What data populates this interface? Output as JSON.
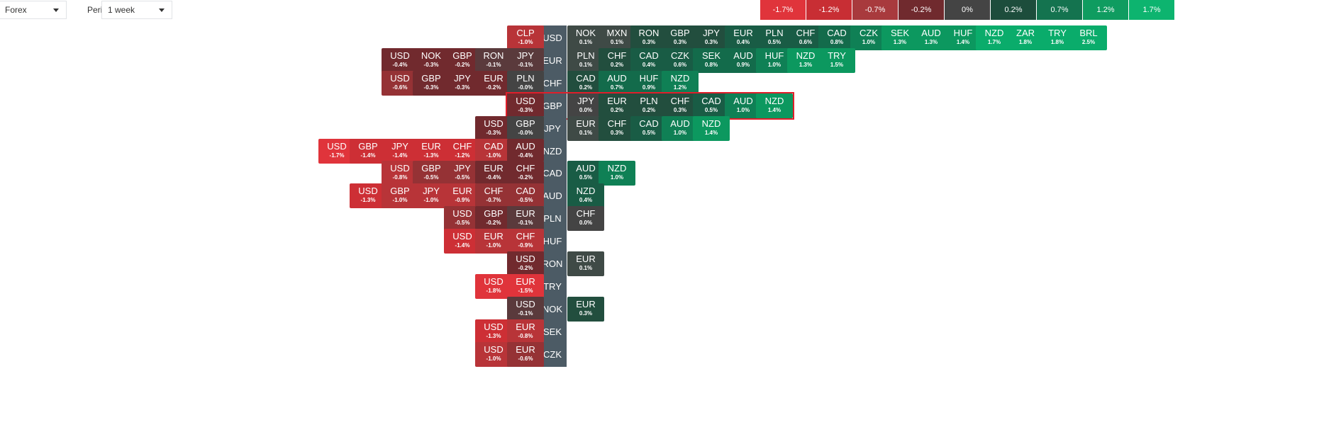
{
  "toolbar": {
    "market_select": "Forex",
    "period_label": "Period:",
    "period_select": "1 week"
  },
  "legend": [
    {
      "label": "-1.7%",
      "color": "#e0343b"
    },
    {
      "label": "-1.2%",
      "color": "#c82e34"
    },
    {
      "label": "-0.7%",
      "color": "#a83a3d"
    },
    {
      "label": "-0.2%",
      "color": "#702a2e"
    },
    {
      "label": "0%",
      "color": "#444444"
    },
    {
      "label": "0.2%",
      "color": "#1d4d3c"
    },
    {
      "label": "0.7%",
      "color": "#14734f"
    },
    {
      "label": "1.2%",
      "color": "#0f9c60"
    },
    {
      "label": "1.7%",
      "color": "#0db46f"
    }
  ],
  "highlighted_row": "GBP",
  "chart_data": {
    "type": "heatmap",
    "unit": "%",
    "rows": [
      {
        "base": "USD",
        "left": [
          {
            "c": "CLP",
            "v": "-1.0%"
          }
        ],
        "right": [
          {
            "c": "NOK",
            "v": "0.1%"
          },
          {
            "c": "MXN",
            "v": "0.1%"
          },
          {
            "c": "RON",
            "v": "0.3%"
          },
          {
            "c": "GBP",
            "v": "0.3%"
          },
          {
            "c": "JPY",
            "v": "0.3%"
          },
          {
            "c": "EUR",
            "v": "0.4%"
          },
          {
            "c": "PLN",
            "v": "0.5%"
          },
          {
            "c": "CHF",
            "v": "0.6%"
          },
          {
            "c": "CAD",
            "v": "0.8%"
          },
          {
            "c": "CZK",
            "v": "1.0%"
          },
          {
            "c": "SEK",
            "v": "1.3%"
          },
          {
            "c": "AUD",
            "v": "1.3%"
          },
          {
            "c": "HUF",
            "v": "1.4%"
          },
          {
            "c": "NZD",
            "v": "1.7%"
          },
          {
            "c": "ZAR",
            "v": "1.8%"
          },
          {
            "c": "TRY",
            "v": "1.8%"
          },
          {
            "c": "BRL",
            "v": "2.5%"
          }
        ]
      },
      {
        "base": "EUR",
        "left": [
          {
            "c": "USD",
            "v": "-0.4%"
          },
          {
            "c": "NOK",
            "v": "-0.3%"
          },
          {
            "c": "GBP",
            "v": "-0.2%"
          },
          {
            "c": "RON",
            "v": "-0.1%"
          },
          {
            "c": "JPY",
            "v": "-0.1%"
          }
        ],
        "right": [
          {
            "c": "PLN",
            "v": "0.1%"
          },
          {
            "c": "CHF",
            "v": "0.2%"
          },
          {
            "c": "CAD",
            "v": "0.4%"
          },
          {
            "c": "CZK",
            "v": "0.6%"
          },
          {
            "c": "SEK",
            "v": "0.8%"
          },
          {
            "c": "AUD",
            "v": "0.9%"
          },
          {
            "c": "HUF",
            "v": "1.0%"
          },
          {
            "c": "NZD",
            "v": "1.3%"
          },
          {
            "c": "TRY",
            "v": "1.5%"
          }
        ]
      },
      {
        "base": "CHF",
        "left": [
          {
            "c": "USD",
            "v": "-0.6%"
          },
          {
            "c": "GBP",
            "v": "-0.3%"
          },
          {
            "c": "JPY",
            "v": "-0.3%"
          },
          {
            "c": "EUR",
            "v": "-0.2%"
          },
          {
            "c": "PLN",
            "v": "-0.0%"
          }
        ],
        "right": [
          {
            "c": "CAD",
            "v": "0.2%"
          },
          {
            "c": "AUD",
            "v": "0.7%"
          },
          {
            "c": "HUF",
            "v": "0.9%"
          },
          {
            "c": "NZD",
            "v": "1.2%"
          }
        ]
      },
      {
        "base": "GBP",
        "left": [
          {
            "c": "USD",
            "v": "-0.3%"
          }
        ],
        "right": [
          {
            "c": "JPY",
            "v": "0.0%"
          },
          {
            "c": "EUR",
            "v": "0.2%"
          },
          {
            "c": "PLN",
            "v": "0.2%"
          },
          {
            "c": "CHF",
            "v": "0.3%"
          },
          {
            "c": "CAD",
            "v": "0.5%"
          },
          {
            "c": "AUD",
            "v": "1.0%"
          },
          {
            "c": "NZD",
            "v": "1.4%"
          }
        ]
      },
      {
        "base": "JPY",
        "left": [
          {
            "c": "USD",
            "v": "-0.3%"
          },
          {
            "c": "GBP",
            "v": "-0.0%"
          }
        ],
        "right": [
          {
            "c": "EUR",
            "v": "0.1%"
          },
          {
            "c": "CHF",
            "v": "0.3%"
          },
          {
            "c": "CAD",
            "v": "0.5%"
          },
          {
            "c": "AUD",
            "v": "1.0%"
          },
          {
            "c": "NZD",
            "v": "1.4%"
          }
        ]
      },
      {
        "base": "NZD",
        "left": [
          {
            "c": "USD",
            "v": "-1.7%"
          },
          {
            "c": "GBP",
            "v": "-1.4%"
          },
          {
            "c": "JPY",
            "v": "-1.4%"
          },
          {
            "c": "EUR",
            "v": "-1.3%"
          },
          {
            "c": "CHF",
            "v": "-1.2%"
          },
          {
            "c": "CAD",
            "v": "-1.0%"
          },
          {
            "c": "AUD",
            "v": "-0.4%"
          }
        ],
        "right": []
      },
      {
        "base": "CAD",
        "left": [
          {
            "c": "USD",
            "v": "-0.8%"
          },
          {
            "c": "GBP",
            "v": "-0.5%"
          },
          {
            "c": "JPY",
            "v": "-0.5%"
          },
          {
            "c": "EUR",
            "v": "-0.4%"
          },
          {
            "c": "CHF",
            "v": "-0.2%"
          }
        ],
        "right": [
          {
            "c": "AUD",
            "v": "0.5%"
          },
          {
            "c": "NZD",
            "v": "1.0%"
          }
        ]
      },
      {
        "base": "AUD",
        "left": [
          {
            "c": "USD",
            "v": "-1.3%"
          },
          {
            "c": "GBP",
            "v": "-1.0%"
          },
          {
            "c": "JPY",
            "v": "-1.0%"
          },
          {
            "c": "EUR",
            "v": "-0.9%"
          },
          {
            "c": "CHF",
            "v": "-0.7%"
          },
          {
            "c": "CAD",
            "v": "-0.5%"
          }
        ],
        "right": [
          {
            "c": "NZD",
            "v": "0.4%"
          }
        ]
      },
      {
        "base": "PLN",
        "left": [
          {
            "c": "USD",
            "v": "-0.5%"
          },
          {
            "c": "GBP",
            "v": "-0.2%"
          },
          {
            "c": "EUR",
            "v": "-0.1%"
          }
        ],
        "right": [
          {
            "c": "CHF",
            "v": "0.0%"
          }
        ]
      },
      {
        "base": "HUF",
        "left": [
          {
            "c": "USD",
            "v": "-1.4%"
          },
          {
            "c": "EUR",
            "v": "-1.0%"
          },
          {
            "c": "CHF",
            "v": "-0.9%"
          }
        ],
        "right": []
      },
      {
        "base": "RON",
        "left": [
          {
            "c": "USD",
            "v": "-0.2%"
          }
        ],
        "right": [
          {
            "c": "EUR",
            "v": "0.1%"
          }
        ]
      },
      {
        "base": "TRY",
        "left": [
          {
            "c": "USD",
            "v": "-1.8%"
          },
          {
            "c": "EUR",
            "v": "-1.5%"
          }
        ],
        "right": []
      },
      {
        "base": "NOK",
        "left": [
          {
            "c": "USD",
            "v": "-0.1%"
          }
        ],
        "right": [
          {
            "c": "EUR",
            "v": "0.3%"
          }
        ]
      },
      {
        "base": "SEK",
        "left": [
          {
            "c": "USD",
            "v": "-1.3%"
          },
          {
            "c": "EUR",
            "v": "-0.8%"
          }
        ],
        "right": []
      },
      {
        "base": "CZK",
        "left": [
          {
            "c": "USD",
            "v": "-1.0%"
          },
          {
            "c": "EUR",
            "v": "-0.6%"
          }
        ],
        "right": []
      }
    ]
  }
}
